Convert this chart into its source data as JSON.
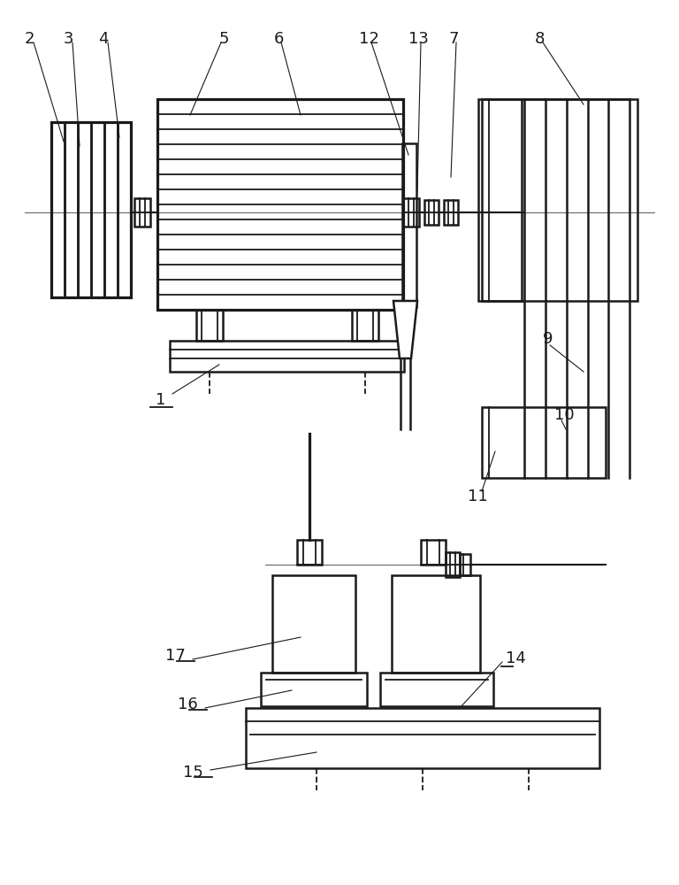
{
  "lc": "#1a1a1a",
  "lw": 1.3,
  "lw2": 1.8,
  "fig_width": 7.68,
  "fig_height": 10.0
}
